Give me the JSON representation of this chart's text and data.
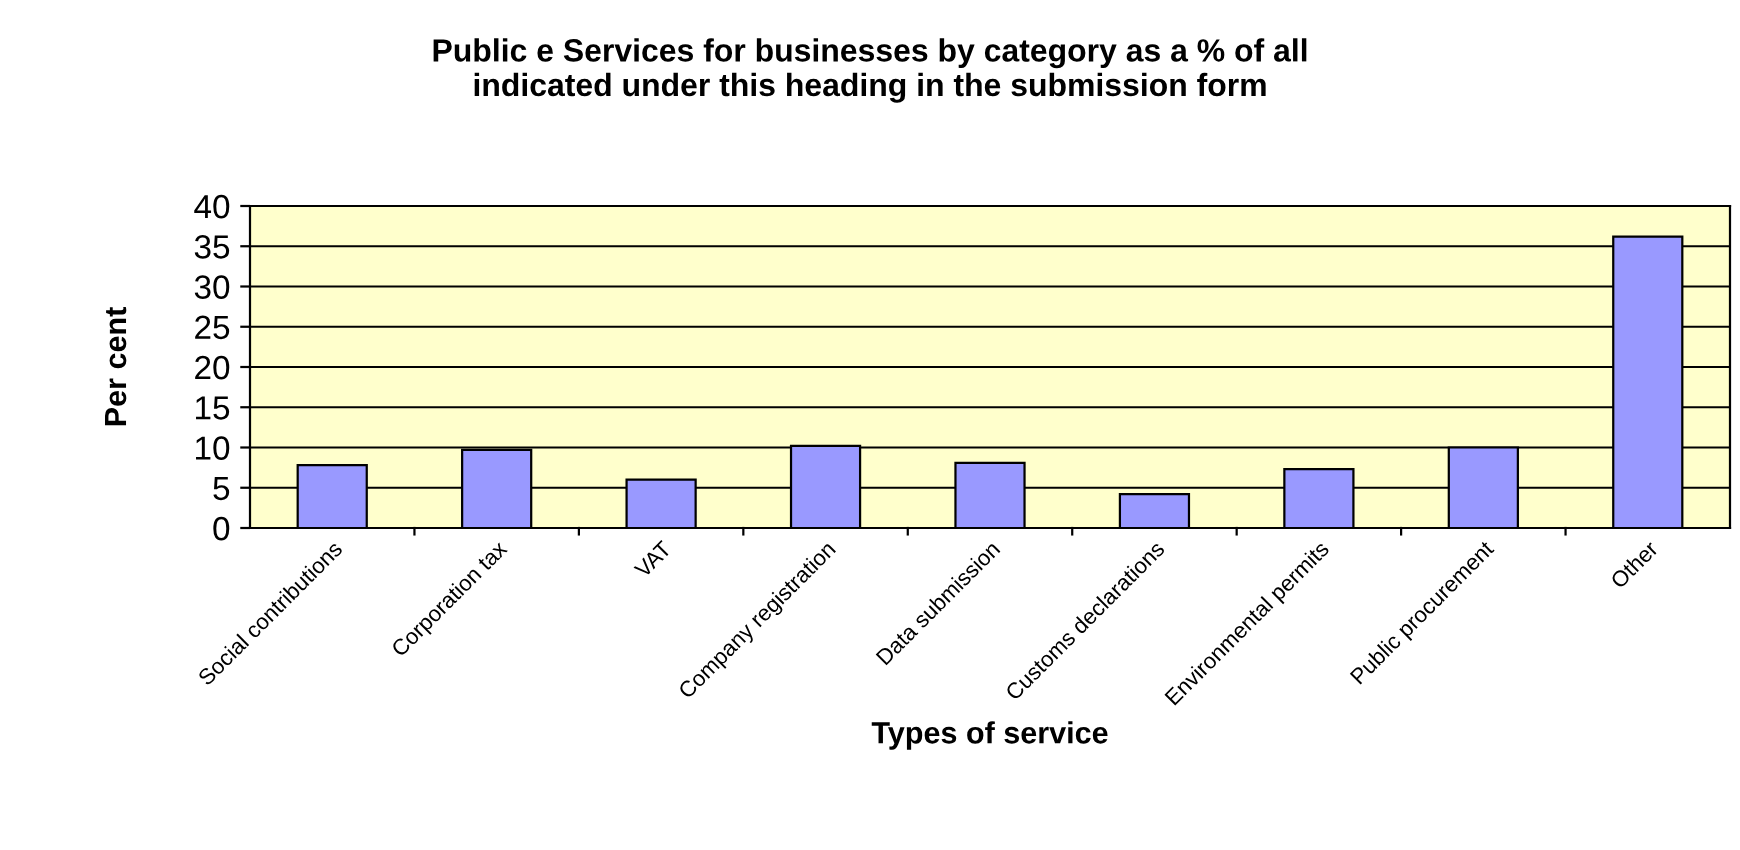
{
  "chart_data": {
    "type": "bar",
    "title": "Public e Services for businesses by category as a % of all\nindicated under this heading in the submission form",
    "xlabel": "Types of service",
    "ylabel": "Per cent",
    "categories": [
      "Social contributions",
      "Corporation tax",
      "VAT",
      "Company registration",
      "Data submission",
      "Customs declarations",
      "Environmental permits",
      "Public procurement",
      "Other"
    ],
    "values": [
      7.8,
      9.7,
      6.0,
      10.2,
      8.1,
      4.2,
      7.3,
      10.0,
      36.2
    ],
    "color": "#9999ff",
    "ylim": [
      0,
      40
    ],
    "yticks": [
      0,
      5,
      10,
      15,
      20,
      25,
      30,
      35,
      40
    ],
    "grid": "y",
    "legend": false
  }
}
